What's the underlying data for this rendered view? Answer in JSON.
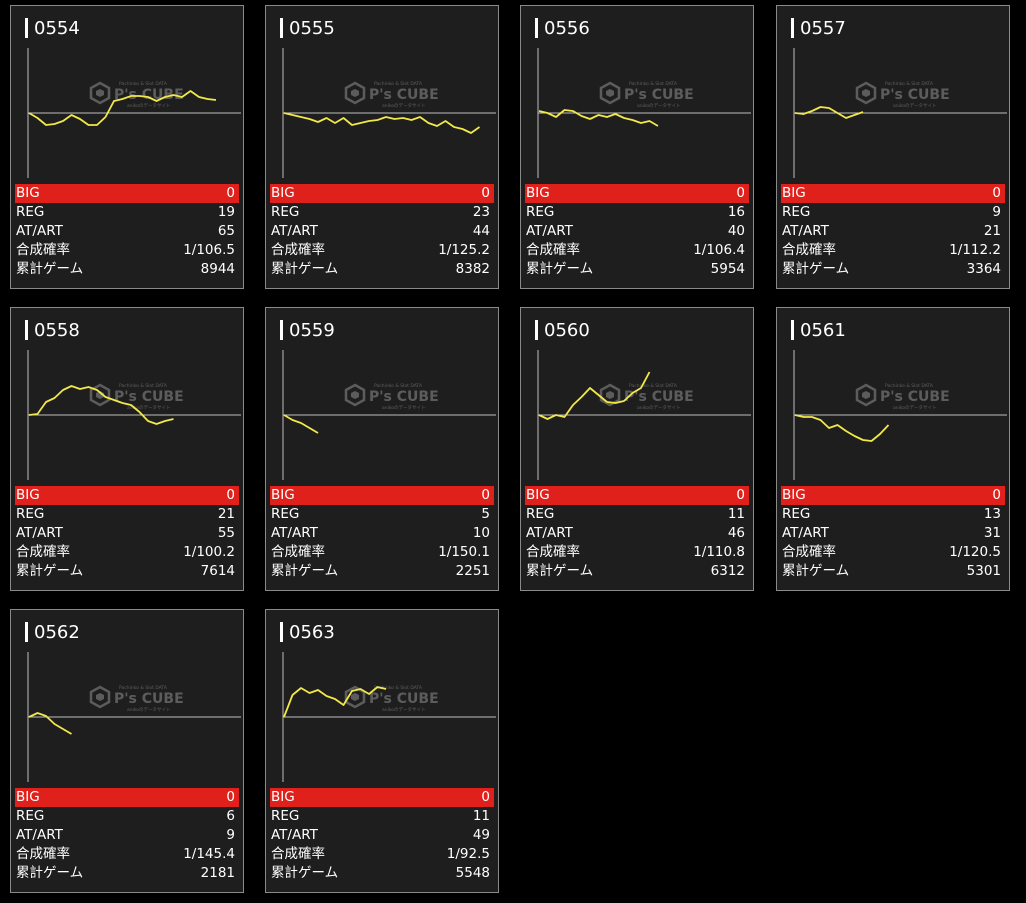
{
  "watermark": {
    "brand": "P's CUBE",
    "small_top": "Pachinko & Slot DATA",
    "small_bottom": "anikoのデータサイト"
  },
  "colors": {
    "background": "#000000",
    "card": "#1e1e1e",
    "card_border": "#8a8a8a",
    "big_row": "#e0201b",
    "line": "#f2e84a",
    "axis": "#bdbdbd"
  },
  "labels": {
    "big": "BIG",
    "reg": "REG",
    "atart": "AT/ART",
    "prob": "合成確率",
    "games": "累計ゲーム"
  },
  "machines": [
    {
      "id": "0554",
      "big": "0",
      "reg": "19",
      "atart": "65",
      "prob": "1/106.5",
      "games": "8944",
      "series": [
        0,
        -5,
        -12,
        -11,
        -8,
        -2,
        -6,
        -12,
        -12,
        -4,
        12,
        14,
        17,
        17,
        16,
        12,
        16,
        18,
        16,
        22,
        16,
        14,
        13
      ]
    },
    {
      "id": "0555",
      "big": "0",
      "reg": "23",
      "atart": "44",
      "prob": "1/125.2",
      "games": "8382",
      "series": [
        0,
        -2,
        -4,
        -6,
        -9,
        -5,
        -10,
        -5,
        -12,
        -10,
        -8,
        -7,
        -4,
        -6,
        -5,
        -7,
        -4,
        -10,
        -13,
        -8,
        -14,
        -16,
        -20,
        -14
      ]
    },
    {
      "id": "0556",
      "big": "0",
      "reg": "16",
      "atart": "40",
      "prob": "1/106.4",
      "games": "5954",
      "series": [
        2,
        0,
        -4,
        3,
        2,
        -3,
        -6,
        -2,
        -4,
        -1,
        -5,
        -7,
        -10,
        -8,
        -13
      ]
    },
    {
      "id": "0557",
      "big": "0",
      "reg": "9",
      "atart": "21",
      "prob": "1/112.2",
      "games": "3364",
      "series": [
        0,
        -1,
        2,
        6,
        5,
        0,
        -5,
        -2,
        1
      ]
    },
    {
      "id": "0558",
      "big": "0",
      "reg": "21",
      "atart": "55",
      "prob": "1/100.2",
      "games": "7614",
      "series": [
        0,
        1,
        13,
        17,
        25,
        29,
        26,
        28,
        25,
        18,
        15,
        12,
        10,
        3,
        -6,
        -9,
        -6,
        -4
      ]
    },
    {
      "id": "0559",
      "big": "0",
      "reg": "5",
      "atart": "10",
      "prob": "1/150.1",
      "games": "2251",
      "series": [
        0,
        -5,
        -8,
        -13,
        -18
      ]
    },
    {
      "id": "0560",
      "big": "0",
      "reg": "11",
      "atart": "46",
      "prob": "1/110.8",
      "games": "6312",
      "series": [
        0,
        -4,
        0,
        -2,
        10,
        18,
        27,
        20,
        13,
        12,
        14,
        22,
        27,
        43
      ]
    },
    {
      "id": "0561",
      "big": "0",
      "reg": "13",
      "atart": "31",
      "prob": "1/120.5",
      "games": "5301",
      "series": [
        0,
        -2,
        -2,
        -5,
        -13,
        -10,
        -16,
        -21,
        -25,
        -26,
        -19,
        -10
      ]
    },
    {
      "id": "0562",
      "big": "0",
      "reg": "6",
      "atart": "9",
      "prob": "1/145.4",
      "games": "2181",
      "series": [
        0,
        4,
        1,
        -7,
        -12,
        -17
      ]
    },
    {
      "id": "0563",
      "big": "0",
      "reg": "11",
      "atart": "49",
      "prob": "1/92.5",
      "games": "5548",
      "series": [
        0,
        22,
        29,
        24,
        27,
        21,
        18,
        12,
        26,
        28,
        23,
        30,
        28
      ]
    }
  ]
}
